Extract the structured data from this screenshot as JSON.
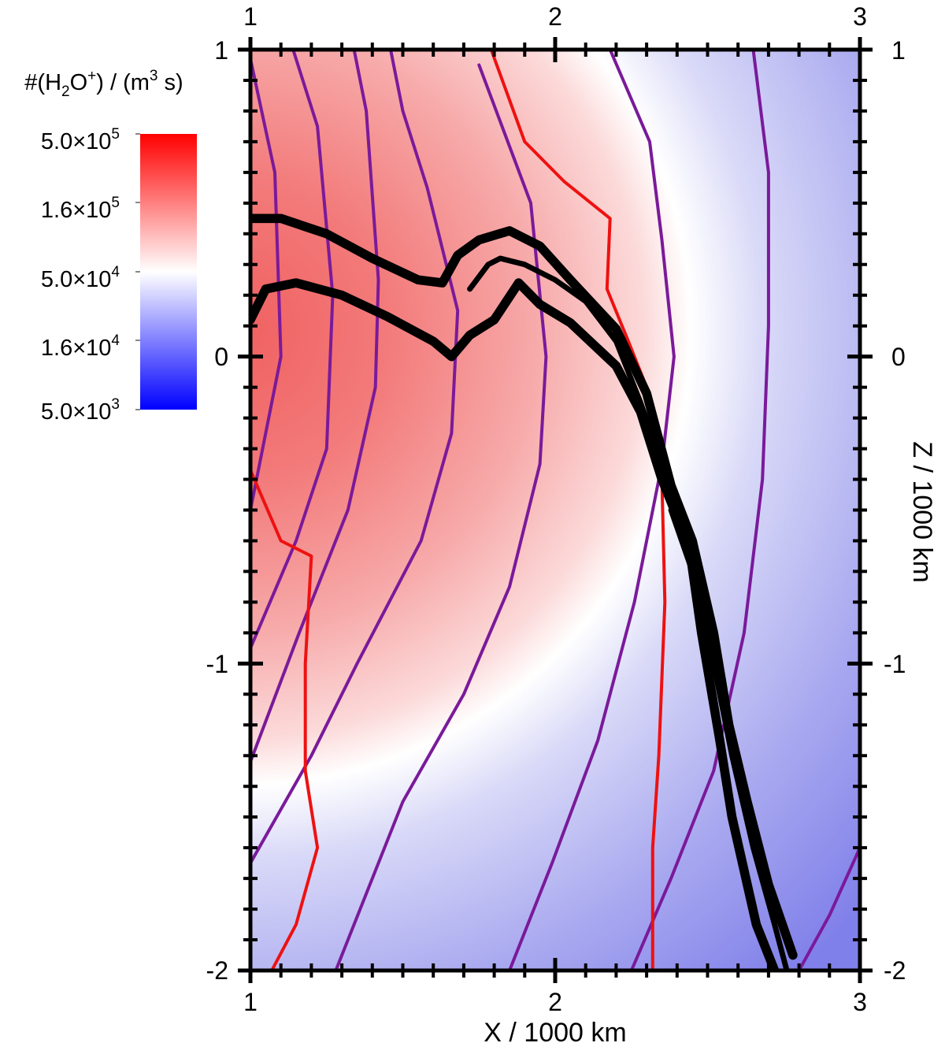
{
  "chart_data": {
    "type": "heatmap",
    "title": "",
    "xlabel": "X / 1000 km",
    "ylabel": "Z / 1000 km",
    "xlim": [
      1,
      3
    ],
    "ylim": [
      -2,
      1
    ],
    "x_ticks": [
      "1",
      "2",
      "3"
    ],
    "y_ticks": [
      "1",
      "0",
      "-1",
      "-2"
    ],
    "colorbar": {
      "title_parts": [
        "#(H",
        "2",
        "O",
        "+",
        ") / (m",
        "3",
        " s)"
      ],
      "scale": "log",
      "range": [
        5000,
        500000
      ],
      "colors": [
        "#0000ff",
        "#ffffff",
        "#ff0000"
      ],
      "ticks": [
        {
          "mantissa": "5.0×10",
          "exp": "5",
          "value": 500000
        },
        {
          "mantissa": "1.6×10",
          "exp": "5",
          "value": 160000
        },
        {
          "mantissa": "5.0×10",
          "exp": "4",
          "value": 50000
        },
        {
          "mantissa": "1.6×10",
          "exp": "4",
          "value": 16000
        },
        {
          "mantissa": "5.0×10",
          "exp": "3",
          "value": 5000
        }
      ]
    },
    "purple_contours": [
      [
        [
          1.0,
          0.97
        ],
        [
          1.08,
          0.6
        ],
        [
          1.1,
          0.0
        ],
        [
          1.0,
          -0.5
        ]
      ],
      [
        [
          1.14,
          1.0
        ],
        [
          1.22,
          0.75
        ],
        [
          1.27,
          0.2
        ],
        [
          1.25,
          -0.3
        ],
        [
          1.15,
          -0.6
        ],
        [
          1.0,
          -0.95
        ]
      ],
      [
        [
          1.34,
          1.0
        ],
        [
          1.38,
          0.8
        ],
        [
          1.42,
          0.25
        ],
        [
          1.41,
          -0.1
        ],
        [
          1.32,
          -0.5
        ],
        [
          1.16,
          -0.9
        ],
        [
          1.0,
          -1.32
        ]
      ],
      [
        [
          1.46,
          1.0
        ],
        [
          1.5,
          0.8
        ],
        [
          1.58,
          0.55
        ],
        [
          1.68,
          0.15
        ],
        [
          1.66,
          -0.25
        ],
        [
          1.56,
          -0.6
        ],
        [
          1.35,
          -1.0
        ],
        [
          1.2,
          -1.3
        ],
        [
          1.0,
          -1.65
        ]
      ],
      [
        [
          1.75,
          0.95
        ],
        [
          1.92,
          0.5
        ],
        [
          1.97,
          0.0
        ],
        [
          1.95,
          -0.35
        ],
        [
          1.85,
          -0.75
        ],
        [
          1.7,
          -1.1
        ],
        [
          1.5,
          -1.45
        ],
        [
          1.28,
          -2.0
        ]
      ],
      [
        [
          2.18,
          1.0
        ],
        [
          2.31,
          0.7
        ],
        [
          2.35,
          0.38
        ],
        [
          2.39,
          0.0
        ],
        [
          2.35,
          -0.35
        ],
        [
          2.26,
          -0.8
        ],
        [
          2.14,
          -1.25
        ],
        [
          1.99,
          -1.65
        ],
        [
          1.85,
          -2.0
        ]
      ],
      [
        [
          2.65,
          1.0
        ],
        [
          2.7,
          0.6
        ],
        [
          2.7,
          0.1
        ],
        [
          2.68,
          -0.4
        ],
        [
          2.62,
          -0.9
        ],
        [
          2.52,
          -1.35
        ],
        [
          2.38,
          -1.7
        ],
        [
          2.25,
          -2.0
        ]
      ],
      [
        [
          3.0,
          -1.6
        ],
        [
          2.9,
          -1.82
        ],
        [
          2.8,
          -2.0
        ]
      ]
    ],
    "red_contours": [
      [
        [
          1.0,
          -0.37
        ],
        [
          1.1,
          -0.6
        ],
        [
          1.2,
          -0.65
        ],
        [
          1.18,
          -1.0
        ],
        [
          1.18,
          -1.35
        ],
        [
          1.22,
          -1.6
        ],
        [
          1.15,
          -1.85
        ],
        [
          1.07,
          -2.0
        ]
      ],
      [
        [
          1.79,
          1.0
        ],
        [
          1.9,
          0.7
        ],
        [
          2.03,
          0.57
        ],
        [
          2.18,
          0.45
        ],
        [
          2.17,
          0.22
        ],
        [
          2.24,
          0.05
        ],
        [
          2.3,
          -0.1
        ],
        [
          2.35,
          -0.4
        ],
        [
          2.36,
          -0.8
        ],
        [
          2.34,
          -1.3
        ],
        [
          2.32,
          -1.6
        ],
        [
          2.32,
          -2.0
        ]
      ]
    ],
    "black_bands": [
      {
        "width_data": 0.03,
        "points": [
          [
            1.0,
            0.45
          ],
          [
            1.1,
            0.45
          ],
          [
            1.25,
            0.4
          ],
          [
            1.4,
            0.32
          ],
          [
            1.55,
            0.25
          ],
          [
            1.63,
            0.24
          ],
          [
            1.68,
            0.33
          ],
          [
            1.75,
            0.38
          ],
          [
            1.85,
            0.41
          ],
          [
            1.95,
            0.36
          ],
          [
            2.05,
            0.25
          ],
          [
            2.2,
            0.09
          ],
          [
            2.3,
            -0.12
          ],
          [
            2.38,
            -0.42
          ],
          [
            2.45,
            -0.6
          ],
          [
            2.52,
            -0.9
          ],
          [
            2.57,
            -1.2
          ],
          [
            2.63,
            -1.45
          ],
          [
            2.7,
            -1.72
          ],
          [
            2.78,
            -1.95
          ]
        ]
      },
      {
        "width_data": 0.03,
        "points": [
          [
            1.0,
            0.12
          ],
          [
            1.05,
            0.22
          ],
          [
            1.15,
            0.24
          ],
          [
            1.3,
            0.2
          ],
          [
            1.45,
            0.13
          ],
          [
            1.6,
            0.05
          ],
          [
            1.66,
            0.0
          ],
          [
            1.72,
            0.07
          ],
          [
            1.8,
            0.12
          ],
          [
            1.88,
            0.24
          ],
          [
            1.95,
            0.17
          ],
          [
            2.05,
            0.11
          ],
          [
            2.2,
            -0.03
          ],
          [
            2.28,
            -0.18
          ],
          [
            2.35,
            -0.4
          ],
          [
            2.44,
            -0.62
          ],
          [
            2.48,
            -0.9
          ],
          [
            2.54,
            -1.25
          ],
          [
            2.58,
            -1.5
          ],
          [
            2.66,
            -1.85
          ],
          [
            2.72,
            -2.0
          ]
        ]
      },
      {
        "width_data": 0.018,
        "points": [
          [
            1.72,
            0.22
          ],
          [
            1.78,
            0.3
          ],
          [
            1.82,
            0.32
          ],
          [
            1.9,
            0.3
          ],
          [
            2.0,
            0.25
          ],
          [
            2.1,
            0.18
          ],
          [
            2.2,
            0.05
          ],
          [
            2.28,
            -0.15
          ],
          [
            2.35,
            -0.35
          ]
        ]
      },
      {
        "width_data": 0.018,
        "points": [
          [
            2.38,
            -0.5
          ],
          [
            2.45,
            -0.7
          ],
          [
            2.52,
            -1.0
          ],
          [
            2.58,
            -1.3
          ],
          [
            2.65,
            -1.6
          ],
          [
            2.72,
            -1.85
          ],
          [
            2.76,
            -2.0
          ]
        ]
      }
    ]
  }
}
